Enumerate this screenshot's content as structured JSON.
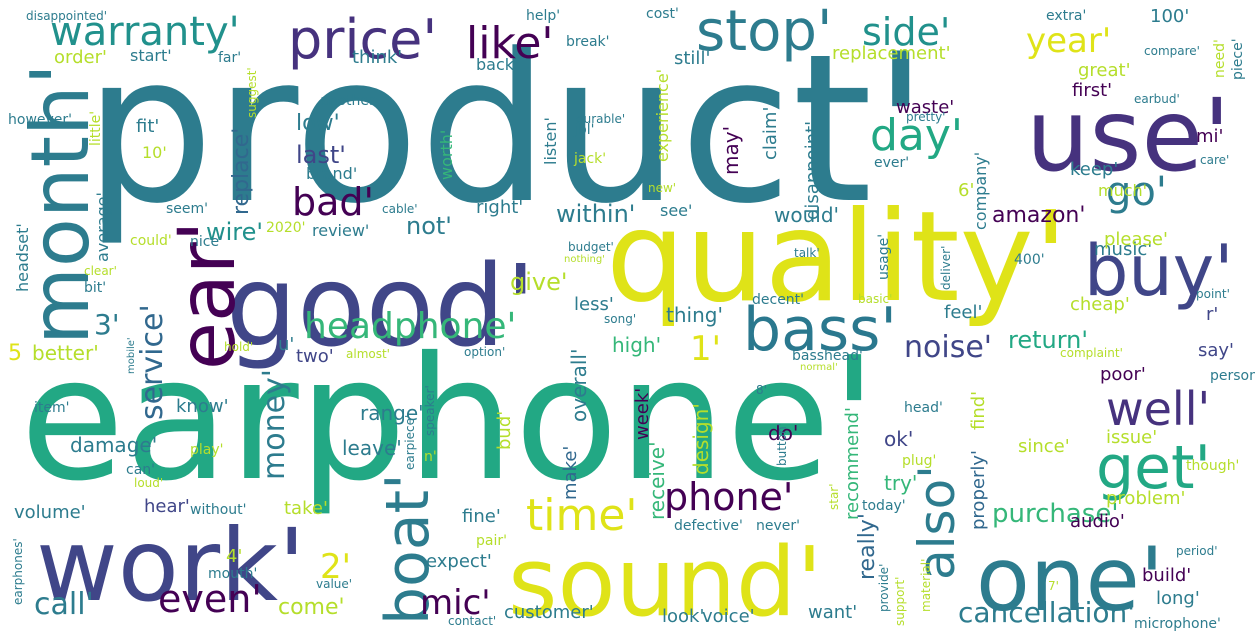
{
  "words": [
    {
      "text": "product'",
      "color": "#2d7c8e"
    },
    {
      "text": "earphone'",
      "color": "#22a884"
    },
    {
      "text": "quality'",
      "color": "#dfe318"
    },
    {
      "text": "good'",
      "color": "#404688"
    },
    {
      "text": "sound'",
      "color": "#dfe318"
    },
    {
      "text": "work'",
      "color": "#404688"
    },
    {
      "text": "use'",
      "color": "#46327e"
    },
    {
      "text": "one'",
      "color": "#2d7c8e"
    },
    {
      "text": "month'",
      "color": "#2d7c8e"
    },
    {
      "text": "buy'",
      "color": "#404688"
    },
    {
      "text": "ear'",
      "color": "#440154"
    },
    {
      "text": "bass'",
      "color": "#2a788e"
    },
    {
      "text": "boat'",
      "color": "#2d7c8e"
    },
    {
      "text": "stop'",
      "color": "#2d7c8e"
    },
    {
      "text": "get'",
      "color": "#22a884"
    },
    {
      "text": "well'",
      "color": "#46327e"
    },
    {
      "text": "price'",
      "color": "#46327e"
    },
    {
      "text": "headphone'",
      "color": "#35b779"
    },
    {
      "text": "also'",
      "color": "#2d7c8e"
    },
    {
      "text": "day'",
      "color": "#22a884"
    },
    {
      "text": "time'",
      "color": "#dfe318"
    },
    {
      "text": "like'",
      "color": "#440154"
    },
    {
      "text": "warranty'",
      "color": "#21918c"
    },
    {
      "text": "side'",
      "color": "#21918c"
    },
    {
      "text": "year'",
      "color": "#dfe318"
    },
    {
      "text": "even'",
      "color": "#440154"
    },
    {
      "text": "phone'",
      "color": "#440154"
    },
    {
      "text": "service'",
      "color": "#31688e"
    },
    {
      "text": "go'",
      "color": "#2d7c8e"
    },
    {
      "text": "noise'",
      "color": "#404688"
    },
    {
      "text": "bad'",
      "color": "#440154"
    },
    {
      "text": "call'",
      "color": "#2d7c8e"
    },
    {
      "text": "mic'",
      "color": "#440154"
    },
    {
      "text": "cancellation'",
      "color": "#2d7c8e"
    },
    {
      "text": "money'",
      "color": "#2d7c8e"
    },
    {
      "text": "2'",
      "color": "#dfe318"
    },
    {
      "text": "1'",
      "color": "#dfe318"
    },
    {
      "text": "3'",
      "color": "#2d7c8e"
    },
    {
      "text": "amazon'",
      "color": "#440154"
    },
    {
      "text": "purchase'",
      "color": "#35b779"
    },
    {
      "text": "return'",
      "color": "#22a884"
    },
    {
      "text": "wire'",
      "color": "#21918c"
    },
    {
      "text": "really'",
      "color": "#31688e"
    },
    {
      "text": "last'",
      "color": "#404688"
    },
    {
      "text": "low'",
      "color": "#2d7c8e"
    },
    {
      "text": "replace'",
      "color": "#31688e"
    },
    {
      "text": "within'",
      "color": "#2d7c8e"
    },
    {
      "text": "not'",
      "color": "#2d7c8e"
    },
    {
      "text": "give'",
      "color": "#b5de2b"
    },
    {
      "text": "come'",
      "color": "#b5de2b"
    },
    {
      "text": "customer'",
      "color": "#2d7c8e"
    },
    {
      "text": "volume'",
      "color": "#2d7c8e"
    },
    {
      "text": "would'",
      "color": "#2d7c8e"
    },
    {
      "text": "music'",
      "color": "#2d7c8e"
    },
    {
      "text": "better'",
      "color": "#b5de2b"
    },
    {
      "text": "5",
      "color": "#dfe318"
    },
    {
      "text": "two'",
      "color": "#404688"
    },
    {
      "text": "u'",
      "color": "#2d7c8e"
    },
    {
      "text": "high'",
      "color": "#35b779"
    },
    {
      "text": "thing'",
      "color": "#2d7c8e"
    },
    {
      "text": "less'",
      "color": "#2d7c8e"
    },
    {
      "text": "overall'",
      "color": "#2d7c8e"
    },
    {
      "text": "make'",
      "color": "#31688e"
    },
    {
      "text": "receive'",
      "color": "#35b779"
    },
    {
      "text": "bud'",
      "color": "#b5de2b"
    },
    {
      "text": "design'",
      "color": "#b5de2b"
    },
    {
      "text": "week'",
      "color": "#440154"
    },
    {
      "text": "do'",
      "color": "#440154"
    },
    {
      "text": "recommend'",
      "color": "#35b779"
    },
    {
      "text": "range'",
      "color": "#2d7c8e"
    },
    {
      "text": "know'",
      "color": "#2d7c8e"
    },
    {
      "text": "leave'",
      "color": "#2d7c8e"
    },
    {
      "text": "damage'",
      "color": "#2d7c8e"
    },
    {
      "text": "ok'",
      "color": "#404688"
    },
    {
      "text": "try'",
      "color": "#35b779"
    },
    {
      "text": "properly'",
      "color": "#31688e"
    },
    {
      "text": "find'",
      "color": "#b5de2b"
    },
    {
      "text": "poor'",
      "color": "#440154"
    },
    {
      "text": "say'",
      "color": "#404688"
    },
    {
      "text": "issue'",
      "color": "#b5de2b"
    },
    {
      "text": "since'",
      "color": "#b5de2b"
    },
    {
      "text": "problem'",
      "color": "#b5de2b"
    },
    {
      "text": "audio'",
      "color": "#440154"
    },
    {
      "text": "build'",
      "color": "#440154"
    },
    {
      "text": "long'",
      "color": "#2d7c8e"
    },
    {
      "text": "fine'",
      "color": "#2d7c8e"
    },
    {
      "text": "expect'",
      "color": "#2d7c8e"
    },
    {
      "text": "look'",
      "color": "#2d7c8e"
    },
    {
      "text": "voice'",
      "color": "#2d7c8e"
    },
    {
      "text": "want'",
      "color": "#2d7c8e"
    },
    {
      "text": "hear'",
      "color": "#404688"
    },
    {
      "text": "take'",
      "color": "#b5de2b"
    },
    {
      "text": "4'",
      "color": "#b5de2b"
    },
    {
      "text": "feel'",
      "color": "#2d7c8e"
    },
    {
      "text": "please'",
      "color": "#b5de2b"
    },
    {
      "text": "cheap'",
      "color": "#b5de2b"
    },
    {
      "text": "r'",
      "color": "#404688"
    },
    {
      "text": "review'",
      "color": "#2d7c8e"
    },
    {
      "text": "right'",
      "color": "#2d7c8e"
    },
    {
      "text": "see'",
      "color": "#2d7c8e"
    },
    {
      "text": "much'",
      "color": "#b5de2b"
    },
    {
      "text": "keep'",
      "color": "#2d7c8e"
    },
    {
      "text": "6'",
      "color": "#b5de2b"
    },
    {
      "text": "company'",
      "color": "#2d7c8e"
    },
    {
      "text": "disappoint'",
      "color": "#2d7c8e"
    },
    {
      "text": "claim'",
      "color": "#2d7c8e"
    },
    {
      "text": "may'",
      "color": "#440154"
    },
    {
      "text": "experience'",
      "color": "#b5de2b"
    },
    {
      "text": "listen'",
      "color": "#2d7c8e"
    },
    {
      "text": "worth'",
      "color": "#35b779"
    },
    {
      "text": "think'",
      "color": "#2d7c8e"
    },
    {
      "text": "brand'",
      "color": "#2d7c8e"
    },
    {
      "text": "fit'",
      "color": "#2d7c8e"
    },
    {
      "text": "average'",
      "color": "#2d7c8e"
    },
    {
      "text": "headset'",
      "color": "#2d7c8e"
    },
    {
      "text": "order'",
      "color": "#b5de2b"
    },
    {
      "text": "start'",
      "color": "#2d7c8e"
    },
    {
      "text": "back'",
      "color": "#2d7c8e"
    },
    {
      "text": "still'",
      "color": "#2d7c8e"
    },
    {
      "text": "replacement'",
      "color": "#b5de2b"
    },
    {
      "text": "great'",
      "color": "#b5de2b"
    },
    {
      "text": "first'",
      "color": "#440154"
    },
    {
      "text": "waste'",
      "color": "#440154"
    },
    {
      "text": "100'",
      "color": "#2d7c8e"
    },
    {
      "text": "need'",
      "color": "#b5de2b"
    },
    {
      "text": "piece'",
      "color": "#2d7c8e"
    },
    {
      "text": "mi'",
      "color": "#440154"
    },
    {
      "text": "little'",
      "color": "#b5de2b"
    },
    {
      "text": "10'",
      "color": "#b5de2b"
    },
    {
      "text": "2020'",
      "color": "#b5de2b"
    },
    {
      "text": "extra'",
      "color": "#2d7c8e"
    },
    {
      "text": "cost'",
      "color": "#2d7c8e"
    },
    {
      "text": "help'",
      "color": "#2d7c8e"
    },
    {
      "text": "break'",
      "color": "#2d7c8e"
    },
    {
      "text": "far'",
      "color": "#2d7c8e"
    },
    {
      "text": "suggest'",
      "color": "#b5de2b"
    },
    {
      "text": "another'",
      "color": "#2d7c8e"
    },
    {
      "text": "however'",
      "color": "#2d7c8e"
    },
    {
      "text": "disappointed'",
      "color": "#2d7c8e"
    },
    {
      "text": "compare'",
      "color": "#2d7c8e"
    },
    {
      "text": "earbud'",
      "color": "#2d7c8e"
    },
    {
      "text": "care'",
      "color": "#2d7c8e"
    },
    {
      "text": "pretty'",
      "color": "#2d7c8e"
    },
    {
      "text": "durable'",
      "color": "#2d7c8e"
    },
    {
      "text": "jbl'",
      "color": "#2d7c8e"
    },
    {
      "text": "jack'",
      "color": "#b5de2b"
    },
    {
      "text": "ever'",
      "color": "#2d7c8e"
    },
    {
      "text": "seem'",
      "color": "#2d7c8e"
    },
    {
      "text": "nice'",
      "color": "#2d7c8e"
    },
    {
      "text": "could'",
      "color": "#b5de2b"
    },
    {
      "text": "cable'",
      "color": "#2d7c8e"
    },
    {
      "text": "budget'",
      "color": "#2d7c8e"
    },
    {
      "text": "nothing'",
      "color": "#b5de2b"
    },
    {
      "text": "talk'",
      "color": "#2d7c8e"
    },
    {
      "text": "deliver'",
      "color": "#2d7c8e"
    },
    {
      "text": "400'",
      "color": "#2d7c8e"
    },
    {
      "text": "usage'",
      "color": "#2d7c8e"
    },
    {
      "text": "new'",
      "color": "#b5de2b"
    },
    {
      "text": "decent'",
      "color": "#2d7c8e"
    },
    {
      "text": "basic'",
      "color": "#b5de2b"
    },
    {
      "text": "point'",
      "color": "#2d7c8e"
    },
    {
      "text": "song'",
      "color": "#2d7c8e"
    },
    {
      "text": "option'",
      "color": "#2d7c8e"
    },
    {
      "text": "almost'",
      "color": "#b5de2b"
    },
    {
      "text": "complaint'",
      "color": "#b5de2b"
    },
    {
      "text": "basshead'",
      "color": "#2d7c8e"
    },
    {
      "text": "normal'",
      "color": "#b5de2b"
    },
    {
      "text": "person'",
      "color": "#2d7c8e"
    },
    {
      "text": "hold'",
      "color": "#b5de2b"
    },
    {
      "text": "mobile'",
      "color": "#2d7c8e"
    },
    {
      "text": "bit'",
      "color": "#2d7c8e"
    },
    {
      "text": "clear'",
      "color": "#b5de2b"
    },
    {
      "text": "item'",
      "color": "#2d7c8e"
    },
    {
      "text": "speaker'",
      "color": "#2d7c8e"
    },
    {
      "text": "play'",
      "color": "#b5de2b"
    },
    {
      "text": "earpiece'",
      "color": "#2d7c8e"
    },
    {
      "text": "n'",
      "color": "#b5de2b"
    },
    {
      "text": "can'",
      "color": "#2d7c8e"
    },
    {
      "text": "loud'",
      "color": "#b5de2b"
    },
    {
      "text": "without'",
      "color": "#2d7c8e"
    },
    {
      "text": "button'",
      "color": "#2d7c8e"
    },
    {
      "text": "8'",
      "color": "#2d7c8e"
    },
    {
      "text": "head'",
      "color": "#2d7c8e"
    },
    {
      "text": "plug'",
      "color": "#b5de2b"
    },
    {
      "text": "though'",
      "color": "#b5de2b"
    },
    {
      "text": "star'",
      "color": "#b5de2b"
    },
    {
      "text": "today'",
      "color": "#2d7c8e"
    },
    {
      "text": "defective'",
      "color": "#2d7c8e"
    },
    {
      "text": "never'",
      "color": "#2d7c8e"
    },
    {
      "text": "pair'",
      "color": "#b5de2b"
    },
    {
      "text": "provide'",
      "color": "#2d7c8e"
    },
    {
      "text": "support'",
      "color": "#b5de2b"
    },
    {
      "text": "material'",
      "color": "#b5de2b"
    },
    {
      "text": "period'",
      "color": "#2d7c8e"
    },
    {
      "text": "7'",
      "color": "#b5de2b"
    },
    {
      "text": "microphone'",
      "color": "#2d7c8e"
    },
    {
      "text": "contact'",
      "color": "#2d7c8e"
    },
    {
      "text": "value'",
      "color": "#2d7c8e"
    },
    {
      "text": "mouth'",
      "color": "#2d7c8e"
    },
    {
      "text": "earphones'",
      "color": "#2d7c8e"
    }
  ]
}
